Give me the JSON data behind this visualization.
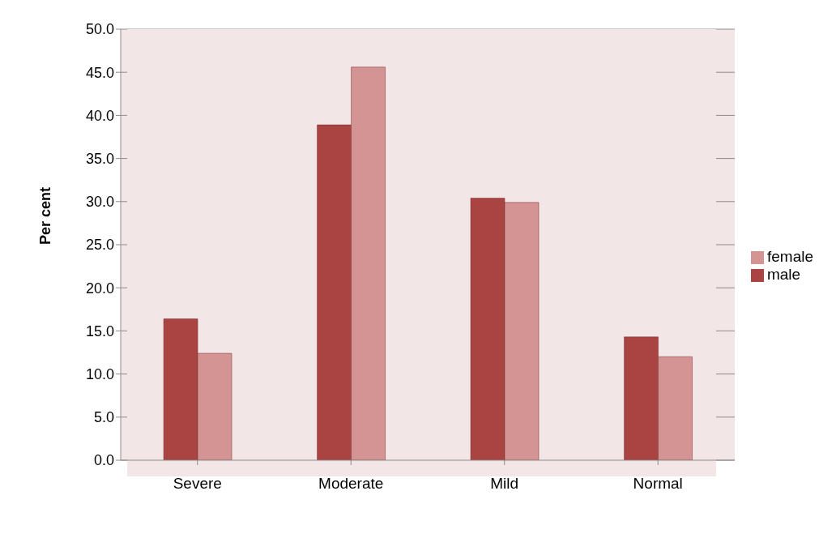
{
  "chart_data": {
    "type": "bar",
    "ylabel": "Per cent",
    "categories": [
      "Severe",
      "Moderate",
      "Mild",
      "Normal"
    ],
    "series": [
      {
        "name": "male",
        "color": "#a94443",
        "values": [
          16.4,
          38.9,
          30.4,
          14.3
        ]
      },
      {
        "name": "female",
        "color": "#d49494",
        "values": [
          12.4,
          45.6,
          29.9,
          12.0
        ]
      }
    ],
    "ylim": [
      0,
      50
    ],
    "yticks": [
      {
        "value": 0,
        "label": "0.0"
      },
      {
        "value": 5,
        "label": "5.0"
      },
      {
        "value": 10,
        "label": "10.0"
      },
      {
        "value": 15,
        "label": "15.0"
      },
      {
        "value": 20,
        "label": "20.0"
      },
      {
        "value": 25,
        "label": "25.0"
      },
      {
        "value": 30,
        "label": "30.0"
      },
      {
        "value": 35,
        "label": "35.0"
      },
      {
        "value": 40,
        "label": "40.0"
      },
      {
        "value": 45,
        "label": "45.0"
      },
      {
        "value": 50,
        "label": "50.0"
      }
    ],
    "grid": "y",
    "legend": "right"
  }
}
